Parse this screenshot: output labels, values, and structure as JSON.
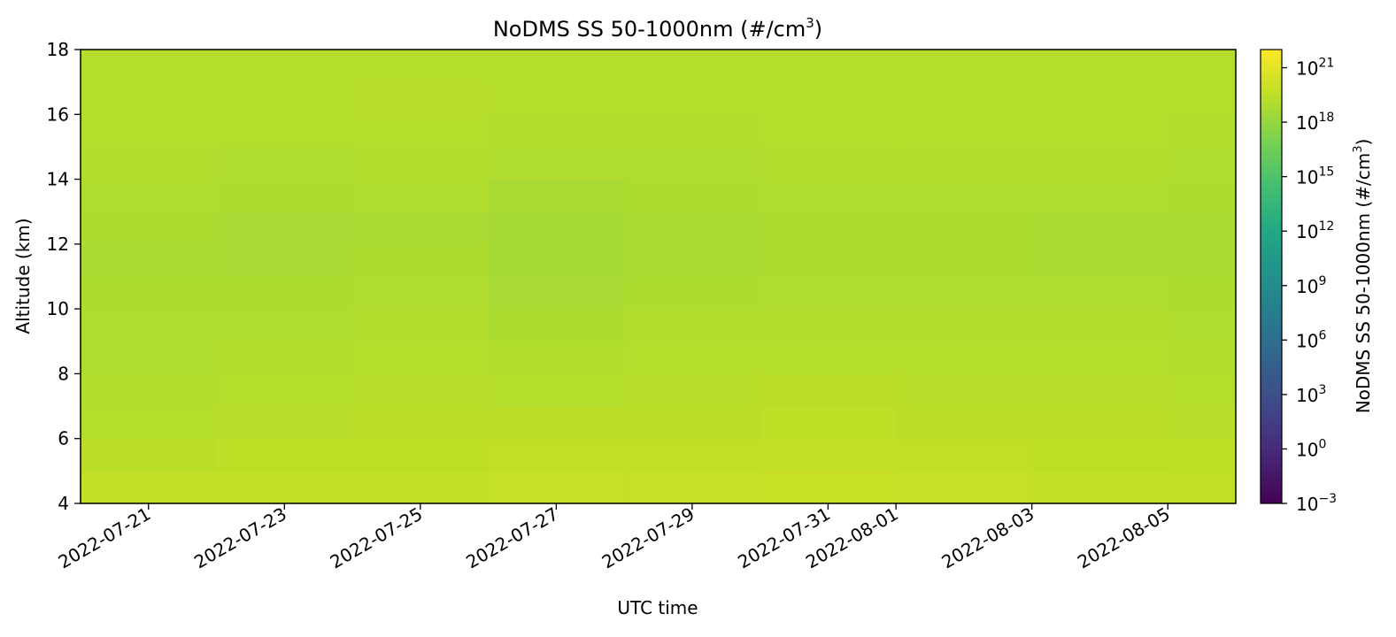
{
  "chart_data": {
    "type": "heatmap",
    "title": "NoDMS SS 50-1000nm (#/cm",
    "title_superscript": "3",
    "title_suffix": ")",
    "xlabel": "UTC time",
    "ylabel": "Altitude (km)",
    "colorbar_label": "NoDMS SS 50-1000nm (#/cm",
    "colorbar_label_superscript": "3",
    "colorbar_label_suffix": ")",
    "colormap": "viridis",
    "color_scale": "log",
    "xlim": [
      "2022-07-20",
      "2022-08-06"
    ],
    "ylim": [
      4,
      18
    ],
    "clim_log10": [
      -3,
      22
    ],
    "x_ticks": [
      {
        "date": "2022-07-21",
        "label": "2022-07-21"
      },
      {
        "date": "2022-07-23",
        "label": "2022-07-23"
      },
      {
        "date": "2022-07-25",
        "label": "2022-07-25"
      },
      {
        "date": "2022-07-27",
        "label": "2022-07-27"
      },
      {
        "date": "2022-07-29",
        "label": "2022-07-29"
      },
      {
        "date": "2022-07-31",
        "label": "2022-07-31"
      },
      {
        "date": "2022-08-01",
        "label": "2022-08-01"
      },
      {
        "date": "2022-08-03",
        "label": "2022-08-03"
      },
      {
        "date": "2022-08-05",
        "label": "2022-08-05"
      }
    ],
    "y_ticks": [
      4,
      6,
      8,
      10,
      12,
      14,
      16,
      18
    ],
    "colorbar_ticks": [
      {
        "exp": -3,
        "base": "10",
        "sup": "−3"
      },
      {
        "exp": 0,
        "base": "10",
        "sup": "0"
      },
      {
        "exp": 3,
        "base": "10",
        "sup": "3"
      },
      {
        "exp": 6,
        "base": "10",
        "sup": "6"
      },
      {
        "exp": 9,
        "base": "10",
        "sup": "9"
      },
      {
        "exp": 12,
        "base": "10",
        "sup": "12"
      },
      {
        "exp": 15,
        "base": "10",
        "sup": "15"
      },
      {
        "exp": 18,
        "base": "10",
        "sup": "18"
      },
      {
        "exp": 21,
        "base": "10",
        "sup": "21"
      }
    ],
    "field_log10": {
      "altitude_km": [
        4.5,
        5.5,
        6.5,
        7.5,
        8.5,
        9.5,
        10.5,
        11.5,
        12.5,
        13.5,
        14.5,
        15.5,
        16.5,
        17.5
      ],
      "dates": [
        "2022-07-20",
        "2022-07-22",
        "2022-07-24",
        "2022-07-26",
        "2022-07-28",
        "2022-07-30",
        "2022-08-01",
        "2022-08-03",
        "2022-08-05"
      ],
      "values": [
        [
          19.6,
          19.7,
          19.7,
          19.8,
          19.8,
          19.9,
          19.8,
          19.7,
          19.6
        ],
        [
          19.4,
          19.5,
          19.5,
          19.6,
          19.6,
          19.7,
          19.6,
          19.5,
          19.5
        ],
        [
          19.2,
          19.3,
          19.4,
          19.4,
          19.4,
          19.5,
          19.4,
          19.4,
          19.3
        ],
        [
          19.1,
          19.2,
          19.3,
          19.2,
          19.3,
          19.4,
          19.3,
          19.3,
          19.2
        ],
        [
          19.0,
          19.1,
          19.2,
          19.1,
          19.2,
          19.2,
          19.2,
          19.2,
          19.1
        ],
        [
          19.0,
          19.0,
          19.1,
          18.9,
          19.1,
          19.1,
          19.1,
          19.1,
          19.0
        ],
        [
          18.9,
          18.9,
          19.0,
          18.7,
          18.9,
          19.0,
          19.0,
          19.0,
          18.9
        ],
        [
          18.8,
          18.7,
          18.9,
          18.6,
          18.8,
          18.9,
          18.9,
          18.8,
          18.8
        ],
        [
          18.9,
          18.7,
          18.8,
          18.6,
          18.8,
          18.9,
          18.9,
          18.8,
          18.8
        ],
        [
          19.0,
          18.9,
          19.0,
          18.8,
          18.9,
          19.0,
          19.0,
          19.0,
          18.9
        ],
        [
          19.1,
          19.0,
          19.1,
          19.0,
          19.0,
          19.1,
          19.1,
          19.1,
          19.0
        ],
        [
          19.2,
          19.2,
          19.2,
          19.1,
          19.1,
          19.2,
          19.2,
          19.2,
          19.1
        ],
        [
          19.2,
          19.2,
          19.3,
          19.2,
          19.2,
          19.2,
          19.2,
          19.2,
          19.2
        ],
        [
          19.2,
          19.2,
          19.2,
          19.2,
          19.2,
          19.2,
          19.2,
          19.2,
          19.2
        ]
      ]
    }
  }
}
